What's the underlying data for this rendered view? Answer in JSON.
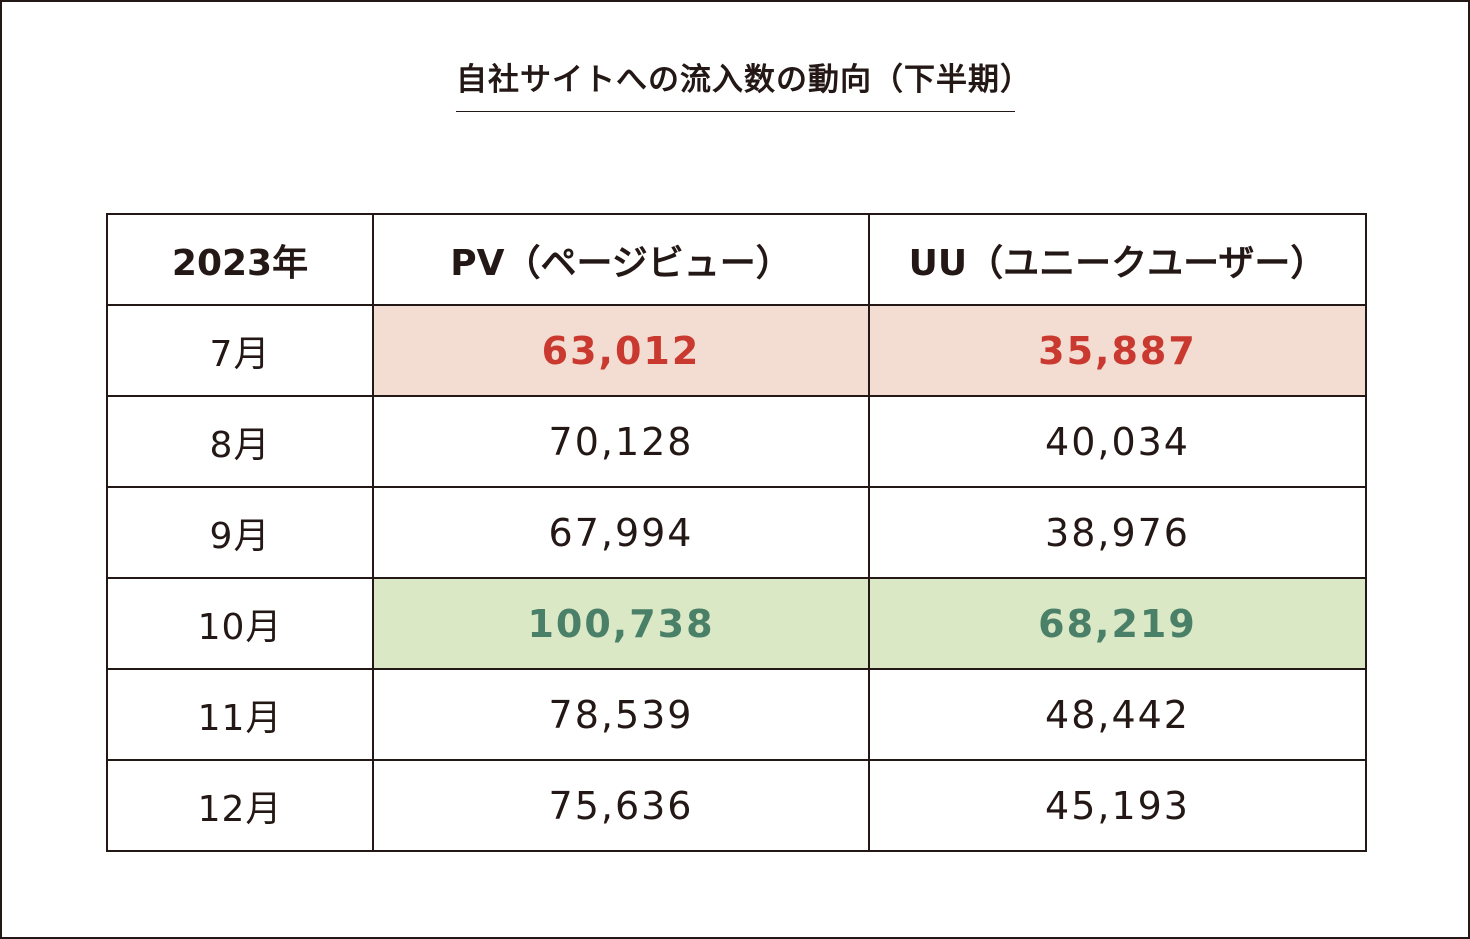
{
  "title": "自社サイトへの流入数の動向（下半期）",
  "table": {
    "headers": [
      "2023年",
      "PV（ページビュー）",
      "UU（ユニークユーザー）"
    ],
    "rows": [
      {
        "month": "7月",
        "pv": "63,012",
        "uu": "35,887",
        "highlight": "red"
      },
      {
        "month": "8月",
        "pv": "70,128",
        "uu": "40,034",
        "highlight": "none"
      },
      {
        "month": "9月",
        "pv": "67,994",
        "uu": "38,976",
        "highlight": "none"
      },
      {
        "month": "10月",
        "pv": "100,738",
        "uu": "68,219",
        "highlight": "green"
      },
      {
        "month": "11月",
        "pv": "78,539",
        "uu": "48,442",
        "highlight": "none"
      },
      {
        "month": "12月",
        "pv": "75,636",
        "uu": "45,193",
        "highlight": "none"
      }
    ]
  },
  "colors": {
    "border": "#231815",
    "red_highlight_bg": "#f3dcd1",
    "red_highlight_text": "#c9392f",
    "green_highlight_bg": "#dae8c6",
    "green_highlight_text": "#4a8068"
  }
}
